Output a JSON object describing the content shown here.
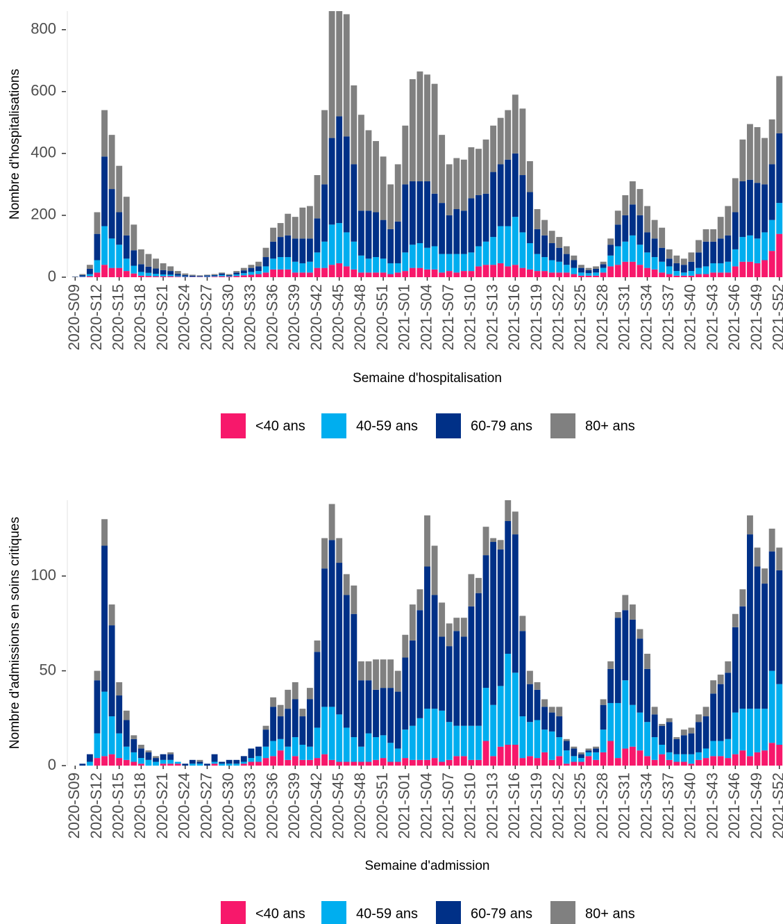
{
  "chart_data": [
    {
      "type": "stacked_bar",
      "x_label": "Semaine d'hospitalisation",
      "y_label": "Nombre d'hospitalisations",
      "categories": [
        "2020-S09",
        null,
        null,
        "2020-S12",
        null,
        null,
        "2020-S15",
        null,
        null,
        "2020-S18",
        null,
        null,
        "2020-S21",
        null,
        null,
        "2020-S24",
        null,
        null,
        "2020-S27",
        null,
        null,
        "2020-S30",
        null,
        null,
        "2020-S33",
        null,
        null,
        "2020-S36",
        null,
        null,
        "2020-S39",
        null,
        null,
        "2020-S42",
        null,
        null,
        "2020-S45",
        null,
        null,
        "2020-S48",
        null,
        null,
        "2020-S51",
        null,
        null,
        "2021-S01",
        null,
        null,
        "2021-S04",
        null,
        null,
        "2021-S07",
        null,
        null,
        "2021-S10",
        null,
        null,
        "2021-S13",
        null,
        null,
        "2021-S16",
        null,
        null,
        "2021-S19",
        null,
        null,
        "2021-S22",
        null,
        null,
        "2021-S25",
        null,
        null,
        "2021-S28",
        null,
        null,
        "2021-S31",
        null,
        null,
        "2021-S34",
        null,
        null,
        "2021-S37",
        null,
        null,
        "2021-S40",
        null,
        null,
        "2021-S43",
        null,
        null,
        "2021-S46",
        null,
        null,
        "2021-S49",
        null,
        null,
        "2021-S52"
      ],
      "series": [
        {
          "name": "<40 ans",
          "color": "#f7186b",
          "values": [
            0,
            1,
            3,
            15,
            40,
            30,
            30,
            20,
            12,
            5,
            4,
            3,
            3,
            3,
            2,
            1,
            1,
            1,
            1,
            2,
            3,
            2,
            4,
            6,
            8,
            10,
            15,
            25,
            25,
            25,
            15,
            15,
            15,
            30,
            30,
            40,
            45,
            35,
            25,
            15,
            15,
            15,
            15,
            10,
            15,
            20,
            30,
            30,
            25,
            25,
            15,
            20,
            15,
            20,
            20,
            35,
            40,
            40,
            45,
            35,
            40,
            30,
            25,
            20,
            20,
            15,
            15,
            15,
            10,
            5,
            5,
            5,
            15,
            35,
            40,
            50,
            50,
            40,
            30,
            25,
            15,
            10,
            5,
            5,
            5,
            10,
            10,
            15,
            15,
            15,
            35,
            50,
            50,
            45,
            55,
            85,
            140
          ]
        },
        {
          "name": "40-59 ans",
          "color": "#00aeef",
          "values": [
            0,
            2,
            7,
            40,
            125,
            95,
            75,
            40,
            25,
            12,
            10,
            8,
            6,
            5,
            3,
            2,
            1,
            1,
            2,
            2,
            4,
            2,
            5,
            7,
            9,
            10,
            20,
            35,
            40,
            40,
            35,
            30,
            35,
            50,
            85,
            130,
            130,
            110,
            90,
            55,
            45,
            50,
            45,
            35,
            30,
            60,
            75,
            80,
            70,
            75,
            60,
            55,
            60,
            55,
            60,
            65,
            75,
            90,
            120,
            130,
            155,
            115,
            85,
            55,
            45,
            40,
            35,
            25,
            20,
            10,
            8,
            10,
            15,
            35,
            60,
            65,
            85,
            65,
            50,
            40,
            35,
            25,
            15,
            10,
            15,
            20,
            25,
            30,
            30,
            35,
            55,
            80,
            85,
            80,
            90,
            100,
            100
          ]
        },
        {
          "name": "60-79 ans",
          "color": "#003087",
          "values": [
            1,
            4,
            17,
            85,
            225,
            160,
            105,
            75,
            50,
            25,
            20,
            17,
            14,
            12,
            6,
            4,
            3,
            2,
            3,
            3,
            5,
            3,
            6,
            9,
            13,
            15,
            30,
            55,
            65,
            70,
            75,
            80,
            75,
            110,
            185,
            280,
            345,
            310,
            250,
            145,
            155,
            145,
            125,
            110,
            135,
            220,
            205,
            200,
            215,
            170,
            165,
            125,
            145,
            140,
            175,
            165,
            155,
            210,
            200,
            215,
            205,
            185,
            165,
            80,
            70,
            55,
            45,
            35,
            25,
            15,
            10,
            12,
            12,
            35,
            70,
            85,
            100,
            95,
            65,
            60,
            45,
            25,
            25,
            25,
            30,
            50,
            80,
            70,
            80,
            85,
            120,
            180,
            180,
            180,
            155,
            180,
            225
          ]
        },
        {
          "name": "80+ ans",
          "color": "#808080",
          "values": [
            1,
            3,
            13,
            70,
            150,
            175,
            150,
            125,
            83,
            48,
            41,
            32,
            22,
            15,
            9,
            5,
            3,
            2,
            2,
            3,
            3,
            3,
            5,
            8,
            10,
            15,
            30,
            45,
            45,
            70,
            70,
            100,
            105,
            140,
            240,
            410,
            340,
            395,
            255,
            310,
            260,
            230,
            205,
            145,
            185,
            190,
            330,
            355,
            345,
            355,
            220,
            165,
            165,
            165,
            165,
            150,
            175,
            150,
            150,
            160,
            190,
            215,
            100,
            65,
            50,
            40,
            35,
            25,
            15,
            10,
            7,
            8,
            8,
            20,
            45,
            65,
            75,
            85,
            85,
            60,
            65,
            30,
            25,
            20,
            30,
            40,
            40,
            40,
            70,
            95,
            110,
            135,
            180,
            180,
            150,
            145,
            185
          ]
        }
      ],
      "ylim": [
        0,
        860
      ],
      "yticks": [
        0,
        200,
        400,
        600,
        800
      ],
      "grid": false,
      "legend": "bottom"
    },
    {
      "type": "stacked_bar",
      "x_label": "Semaine d'admission",
      "y_label": "Nombre d'admissions en soins critiques",
      "categories": [
        "2020-S09",
        null,
        null,
        "2020-S12",
        null,
        null,
        "2020-S15",
        null,
        null,
        "2020-S18",
        null,
        null,
        "2020-S21",
        null,
        null,
        "2020-S24",
        null,
        null,
        "2020-S27",
        null,
        null,
        "2020-S30",
        null,
        null,
        "2020-S33",
        null,
        null,
        "2020-S36",
        null,
        null,
        "2020-S39",
        null,
        null,
        "2020-S42",
        null,
        null,
        "2020-S45",
        null,
        null,
        "2020-S48",
        null,
        null,
        "2020-S51",
        null,
        null,
        "2021-S01",
        null,
        null,
        "2021-S04",
        null,
        null,
        "2021-S07",
        null,
        null,
        "2021-S10",
        null,
        null,
        "2021-S13",
        null,
        null,
        "2021-S16",
        null,
        null,
        "2021-S19",
        null,
        null,
        "2021-S22",
        null,
        null,
        "2021-S25",
        null,
        null,
        "2021-S28",
        null,
        null,
        "2021-S31",
        null,
        null,
        "2021-S34",
        null,
        null,
        "2021-S37",
        null,
        null,
        "2021-S40",
        null,
        null,
        "2021-S43",
        null,
        null,
        "2021-S46",
        null,
        null,
        "2021-S49",
        null,
        null,
        "2021-S52"
      ],
      "series": [
        {
          "name": "<40 ans",
          "color": "#f7186b",
          "values": [
            0,
            0,
            0,
            4,
            5,
            6,
            4,
            3,
            2,
            1,
            0,
            0,
            1,
            1,
            1,
            0,
            0,
            0,
            0,
            1,
            0,
            0,
            0,
            1,
            2,
            2,
            4,
            5,
            8,
            3,
            5,
            3,
            3,
            4,
            6,
            3,
            2,
            2,
            2,
            2,
            2,
            3,
            4,
            2,
            2,
            4,
            3,
            3,
            3,
            4,
            2,
            3,
            5,
            5,
            3,
            3,
            13,
            5,
            10,
            11,
            11,
            4,
            5,
            4,
            7,
            3,
            5,
            1,
            2,
            2,
            5,
            3,
            7,
            13,
            4,
            9,
            10,
            8,
            5,
            3,
            6,
            3,
            2,
            2,
            1,
            3,
            4,
            5,
            5,
            4,
            6,
            8,
            5,
            7,
            8,
            12,
            11
          ]
        },
        {
          "name": "40-59 ans",
          "color": "#00aeef",
          "values": [
            0,
            0,
            2,
            13,
            34,
            20,
            13,
            7,
            5,
            3,
            3,
            2,
            2,
            2,
            1,
            0,
            1,
            1,
            0,
            1,
            1,
            1,
            1,
            1,
            2,
            3,
            6,
            8,
            6,
            7,
            10,
            8,
            7,
            16,
            25,
            28,
            25,
            18,
            13,
            8,
            15,
            12,
            12,
            10,
            7,
            15,
            18,
            22,
            27,
            26,
            27,
            20,
            16,
            16,
            18,
            18,
            28,
            27,
            32,
            48,
            38,
            22,
            18,
            20,
            12,
            15,
            10,
            7,
            3,
            2,
            2,
            4,
            12,
            20,
            29,
            36,
            22,
            20,
            18,
            12,
            5,
            4,
            4,
            4,
            5,
            4,
            5,
            8,
            8,
            10,
            22,
            22,
            25,
            23,
            22,
            38,
            32
          ]
        },
        {
          "name": "60-79 ans",
          "color": "#003087",
          "values": [
            0,
            1,
            4,
            28,
            77,
            48,
            20,
            14,
            7,
            5,
            4,
            2,
            3,
            3,
            0,
            1,
            2,
            1,
            1,
            4,
            1,
            2,
            2,
            3,
            5,
            5,
            9,
            18,
            12,
            20,
            20,
            15,
            25,
            40,
            73,
            88,
            80,
            70,
            65,
            35,
            28,
            25,
            25,
            29,
            30,
            38,
            45,
            57,
            75,
            60,
            39,
            40,
            50,
            47,
            63,
            70,
            70,
            86,
            72,
            70,
            73,
            45,
            20,
            16,
            12,
            10,
            11,
            5,
            4,
            2,
            1,
            2,
            13,
            18,
            45,
            37,
            45,
            39,
            28,
            12,
            10,
            16,
            8,
            10,
            11,
            16,
            17,
            25,
            30,
            35,
            45,
            54,
            92,
            75,
            66,
            63,
            60
          ]
        },
        {
          "name": "80+ ans",
          "color": "#808080",
          "values": [
            0,
            0,
            0,
            5,
            14,
            11,
            7,
            5,
            2,
            2,
            1,
            1,
            0,
            1,
            0,
            0,
            0,
            1,
            0,
            0,
            0,
            0,
            0,
            0,
            0,
            0,
            2,
            5,
            6,
            10,
            9,
            4,
            6,
            6,
            16,
            19,
            13,
            11,
            15,
            10,
            10,
            16,
            15,
            15,
            11,
            12,
            19,
            11,
            27,
            26,
            18,
            12,
            7,
            10,
            17,
            8,
            15,
            2,
            5,
            11,
            12,
            8,
            7,
            4,
            4,
            3,
            5,
            1,
            1,
            1,
            1,
            1,
            3,
            4,
            3,
            8,
            8,
            5,
            8,
            4,
            1,
            2,
            1,
            3,
            3,
            4,
            5,
            7,
            5,
            6,
            7,
            9,
            10,
            10,
            8,
            12,
            12
          ]
        }
      ],
      "ylim": [
        0,
        140
      ],
      "yticks": [
        0,
        50,
        100
      ],
      "grid": false,
      "legend": "bottom"
    }
  ]
}
